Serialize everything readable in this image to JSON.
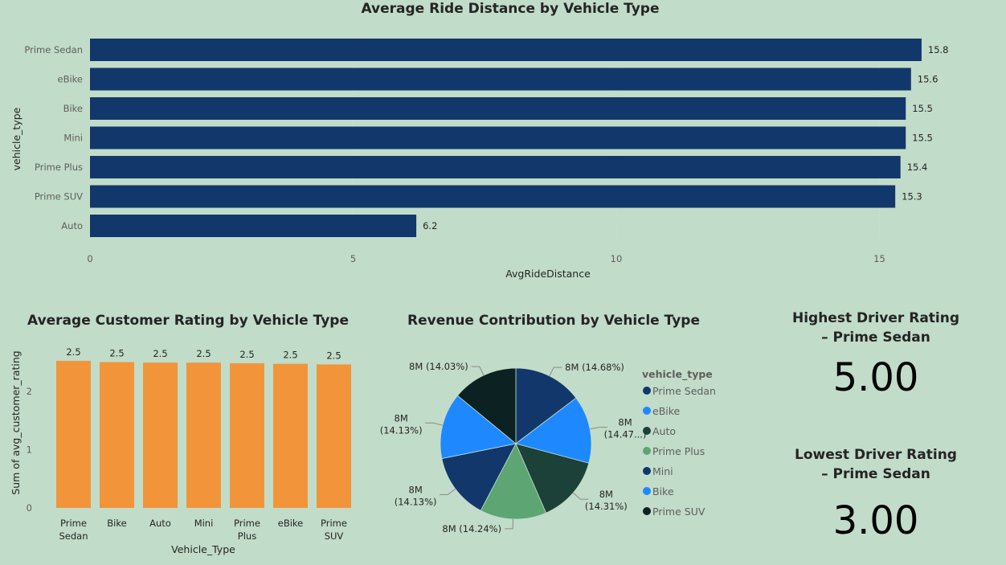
{
  "colors": {
    "background": "#c1dcc9",
    "bar_navy": "#12376b",
    "bar_orange": "#f2953a",
    "text": "#252423",
    "axis_text": "#605e5c",
    "grid": "#d9d9d9"
  },
  "chart_data": [
    {
      "type": "bar",
      "orientation": "horizontal",
      "title": "Average Ride Distance by Vehicle Type",
      "xlabel": "AvgRideDistance",
      "ylabel": "vehicle_type",
      "categories": [
        "Prime Sedan",
        "eBike",
        "Bike",
        "Mini",
        "Prime Plus",
        "Prime SUV",
        "Auto"
      ],
      "values": [
        15.8,
        15.6,
        15.5,
        15.5,
        15.4,
        15.3,
        6.2
      ],
      "data_labels": [
        "15.8",
        "15.6",
        "15.5",
        "15.5",
        "15.4",
        "15.3",
        "6.2"
      ],
      "xlim": [
        0,
        16.5
      ],
      "xticks": [
        "0",
        "5",
        "10",
        "15"
      ],
      "grid": true,
      "color": "#12376b"
    },
    {
      "type": "bar",
      "title": "Average Customer Rating by Vehicle Type",
      "xlabel": "Vehicle_Type",
      "ylabel": "Sum of avg_customer_rating",
      "categories": [
        "Prime Sedan",
        "Bike",
        "Auto",
        "Mini",
        "Prime Plus",
        "eBike",
        "Prime SUV"
      ],
      "category_lines": [
        [
          "Prime",
          "Sedan"
        ],
        [
          "Bike"
        ],
        [
          "Auto"
        ],
        [
          "Mini"
        ],
        [
          "Prime",
          "Plus"
        ],
        [
          "eBike"
        ],
        [
          "Prime",
          "SUV"
        ]
      ],
      "values": [
        2.52,
        2.5,
        2.49,
        2.49,
        2.48,
        2.47,
        2.46
      ],
      "data_labels": [
        "2.5",
        "2.5",
        "2.5",
        "2.5",
        "2.5",
        "2.5",
        "2.5"
      ],
      "ylim": [
        0,
        2.8
      ],
      "yticks": [
        "0",
        "1",
        "2"
      ],
      "color": "#f2953a"
    },
    {
      "type": "pie",
      "title": "Revenue Contribution by Vehicle Type",
      "legend_title": "vehicle_type",
      "legend_position": "right",
      "categories": [
        "Prime Sedan",
        "eBike",
        "Auto",
        "Prime Plus",
        "Mini",
        "Bike",
        "Prime SUV"
      ],
      "values": [
        14.68,
        14.47,
        14.31,
        14.24,
        14.13,
        14.13,
        14.03
      ],
      "colors": [
        "#12376b",
        "#1e88ff",
        "#1b4138",
        "#5da572",
        "#12376b",
        "#1e88ff",
        "#0c2121"
      ],
      "data_labels": [
        [
          "8M (14.68%)"
        ],
        [
          "8M",
          "(14.47...)"
        ],
        [
          "8M",
          "(14.31%)"
        ],
        [
          "8M (14.24%)"
        ],
        [
          "8M",
          "(14.13%)"
        ],
        [
          "8M",
          "(14.13%)"
        ],
        [
          "8M (14.03%)"
        ]
      ]
    }
  ],
  "kpis": {
    "highest": {
      "title_line1": "Highest Driver Rating",
      "title_line2": "– Prime Sedan",
      "value": "5.00"
    },
    "lowest": {
      "title_line1": "Lowest Driver Rating",
      "title_line2": "– Prime Sedan",
      "value": "3.00"
    }
  }
}
